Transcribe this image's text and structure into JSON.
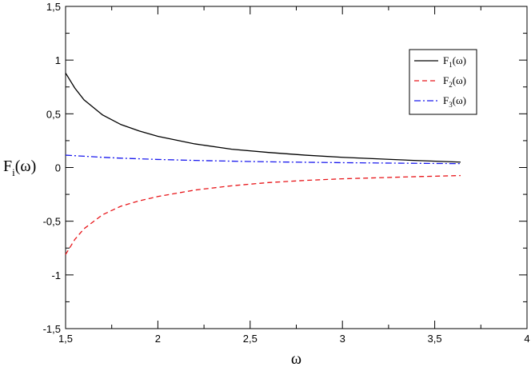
{
  "chart_data": {
    "type": "line",
    "xlabel": "ω",
    "ylabel": {
      "main": "F",
      "sub": "i",
      "arg": "(ω)"
    },
    "xlim": [
      1.5,
      4
    ],
    "ylim": [
      -1.5,
      1.5
    ],
    "x_ticks": [
      {
        "value": 1.5,
        "label": "1,5"
      },
      {
        "value": 2,
        "label": "2"
      },
      {
        "value": 2.5,
        "label": "2,5"
      },
      {
        "value": 3,
        "label": "3"
      },
      {
        "value": 3.5,
        "label": "3,5"
      },
      {
        "value": 4,
        "label": "4"
      }
    ],
    "y_ticks": [
      {
        "value": -1.5,
        "label": "-1,5"
      },
      {
        "value": -1,
        "label": "-1"
      },
      {
        "value": -0.5,
        "label": "-0,5"
      },
      {
        "value": 0,
        "label": "0"
      },
      {
        "value": 0.5,
        "label": "0,5"
      },
      {
        "value": 1,
        "label": "1"
      },
      {
        "value": 1.5,
        "label": "1,5"
      }
    ],
    "grid": false,
    "legend_position": "top-right",
    "series": [
      {
        "name": "F1(ω)",
        "legend": {
          "main": "F",
          "sub": "1",
          "arg": "(ω)"
        },
        "color": "#000000",
        "dash": "solid",
        "x": [
          1.5,
          1.55,
          1.6,
          1.7,
          1.8,
          1.9,
          2.0,
          2.2,
          2.4,
          2.6,
          2.8,
          3.0,
          3.2,
          3.4,
          3.64
        ],
        "y": [
          0.88,
          0.74,
          0.63,
          0.49,
          0.4,
          0.34,
          0.29,
          0.22,
          0.17,
          0.14,
          0.115,
          0.095,
          0.08,
          0.065,
          0.05
        ]
      },
      {
        "name": "F2(ω)",
        "legend": {
          "main": "F",
          "sub": "2",
          "arg": "(ω)"
        },
        "color": "#e8161a",
        "dash": "dashed",
        "x": [
          1.5,
          1.55,
          1.6,
          1.7,
          1.8,
          1.9,
          2.0,
          2.2,
          2.4,
          2.6,
          2.8,
          3.0,
          3.2,
          3.4,
          3.64
        ],
        "y": [
          -0.81,
          -0.67,
          -0.57,
          -0.44,
          -0.36,
          -0.31,
          -0.27,
          -0.21,
          -0.17,
          -0.14,
          -0.12,
          -0.105,
          -0.095,
          -0.085,
          -0.075
        ]
      },
      {
        "name": "F3(ω)",
        "legend": {
          "main": "F",
          "sub": "3",
          "arg": "(ω)"
        },
        "color": "#1a1aee",
        "dash": "dash-dot",
        "x": [
          1.5,
          1.6,
          1.7,
          1.8,
          2.0,
          2.2,
          2.4,
          2.6,
          2.8,
          3.0,
          3.2,
          3.4,
          3.64
        ],
        "y": [
          0.115,
          0.105,
          0.095,
          0.087,
          0.075,
          0.066,
          0.059,
          0.053,
          0.049,
          0.045,
          0.042,
          0.039,
          0.036
        ]
      }
    ]
  }
}
